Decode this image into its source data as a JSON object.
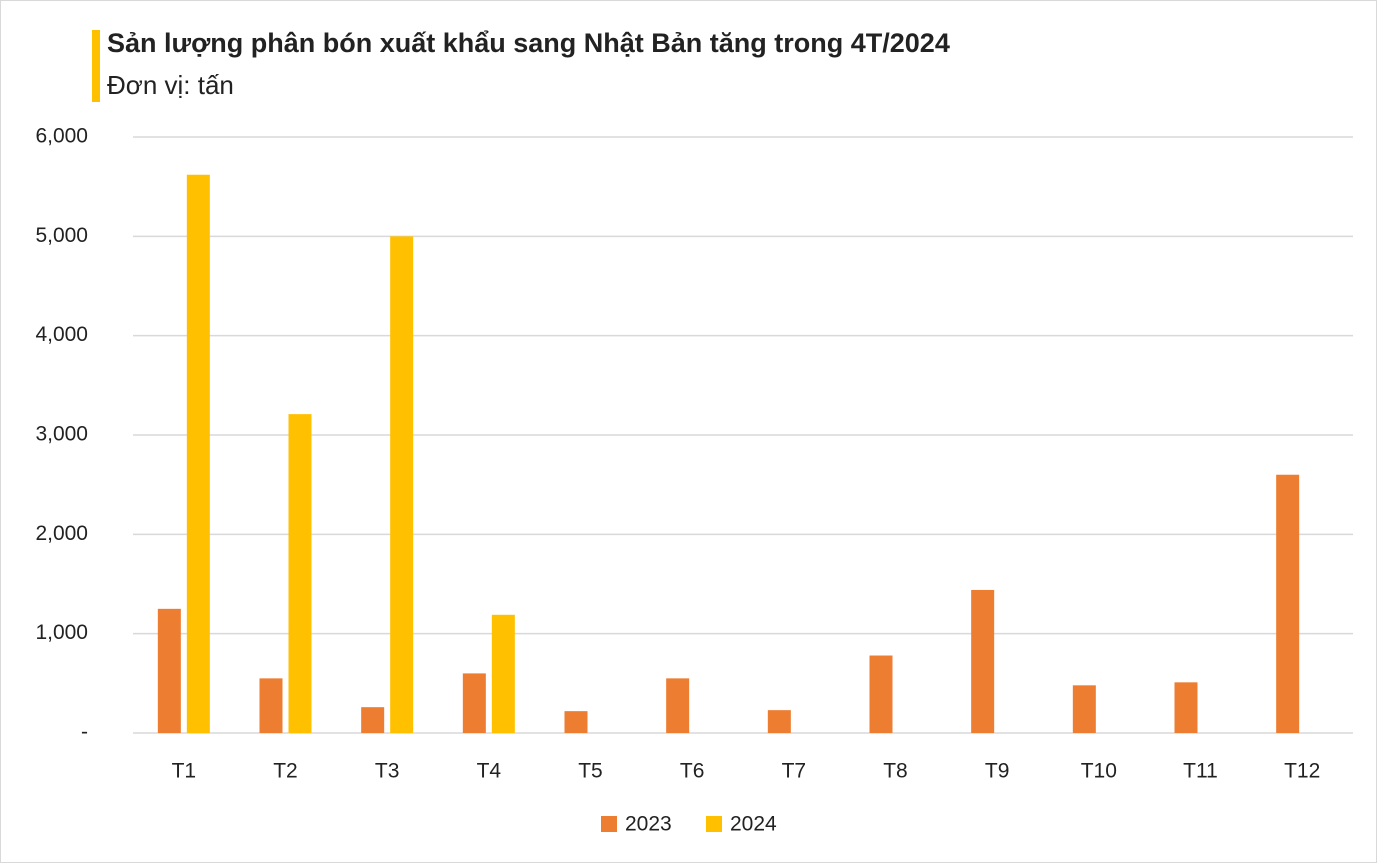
{
  "chart_data": {
    "type": "bar",
    "title": "Sản lượng phân bón xuất khẩu sang Nhật Bản tăng trong 4T/2024",
    "subtitle": "Đơn vị: tấn",
    "categories": [
      "T1",
      "T2",
      "T3",
      "T4",
      "T5",
      "T6",
      "T7",
      "T8",
      "T9",
      "T10",
      "T11",
      "T12"
    ],
    "series": [
      {
        "name": "2023",
        "color": "#ed7d31",
        "values": [
          1250,
          550,
          260,
          600,
          220,
          550,
          230,
          780,
          1440,
          480,
          510,
          2600
        ]
      },
      {
        "name": "2024",
        "color": "#ffc000",
        "values": [
          5620,
          3210,
          5000,
          1190,
          null,
          null,
          null,
          null,
          null,
          null,
          null,
          null
        ]
      }
    ],
    "ylim": [
      0,
      6000
    ],
    "yticks": [
      {
        "value": 0,
        "label": "-"
      },
      {
        "value": 1000,
        "label": "1,000"
      },
      {
        "value": 2000,
        "label": "2,000"
      },
      {
        "value": 3000,
        "label": "3,000"
      },
      {
        "value": 4000,
        "label": "4,000"
      },
      {
        "value": 5000,
        "label": "5,000"
      },
      {
        "value": 6000,
        "label": "6,000"
      }
    ],
    "grid": true,
    "legend": "bottom"
  }
}
